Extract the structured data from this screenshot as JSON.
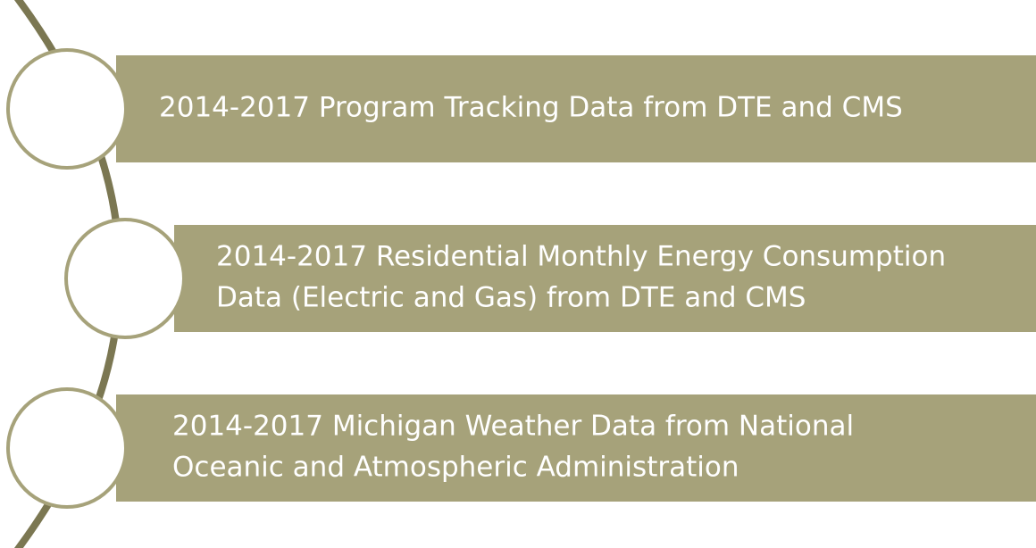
{
  "items": [
    {
      "lines": [
        "2014-2017 Program Tracking Data from DTE and CMS"
      ]
    },
    {
      "lines": [
        "2014-2017 Residential Monthly Energy Consumption",
        "Data (Electric and Gas) from DTE and CMS"
      ]
    },
    {
      "lines": [
        "2014-2017 Michigan Weather Data from National",
        "Oceanic and Atmospheric Administration"
      ]
    }
  ]
}
